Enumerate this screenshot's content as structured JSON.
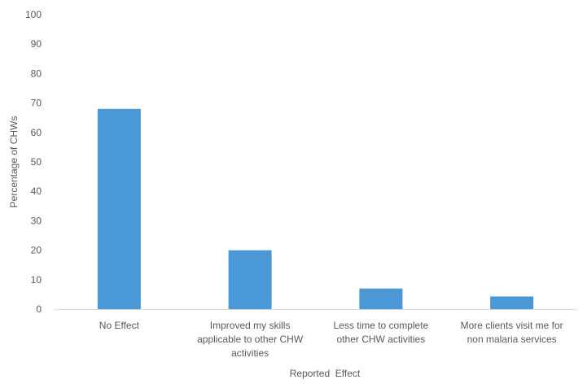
{
  "chart_data": {
    "type": "bar",
    "categories": [
      [
        "No Effect"
      ],
      [
        "Improved my skills",
        "applicable to other CHW",
        "activities"
      ],
      [
        "Less time to complete",
        "other CHW activities"
      ],
      [
        "More clients visit me for",
        "non malaria services"
      ]
    ],
    "values": [
      68,
      20,
      7,
      4.3
    ],
    "title": "",
    "xlabel": "Reported  Effect",
    "ylabel": "Percentage of CHWs",
    "ylim": [
      0,
      100
    ],
    "yticks": [
      0,
      10,
      20,
      30,
      40,
      50,
      60,
      70,
      80,
      90,
      100
    ],
    "grid": false,
    "legend": "none",
    "bar_color": "#4a98d6",
    "axis_color": "#d9d9d9",
    "text_color": "#595959"
  }
}
